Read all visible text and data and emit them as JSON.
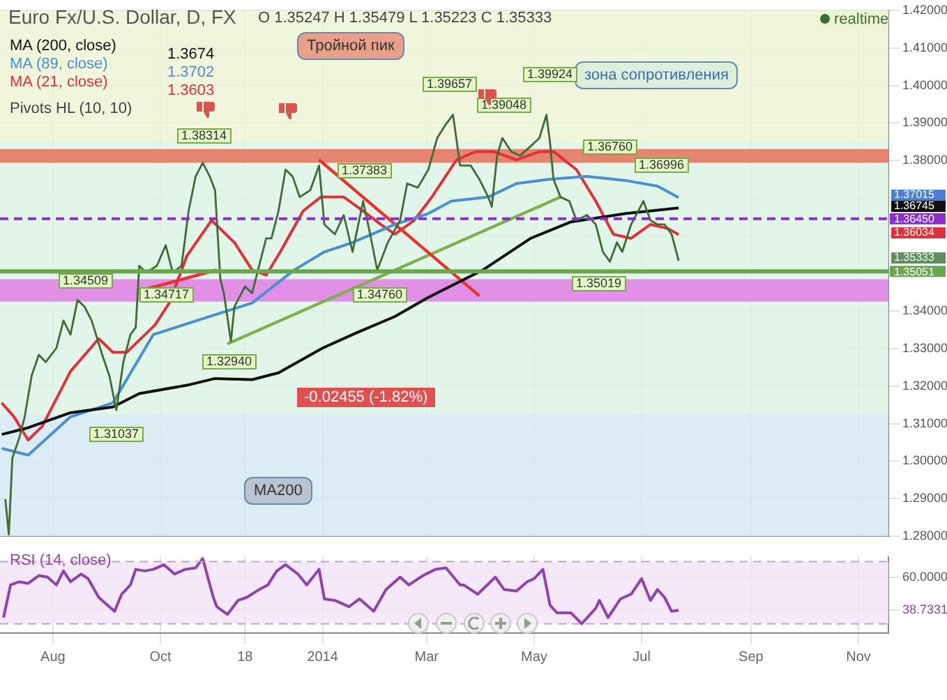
{
  "chart_data": [
    {
      "type": "line",
      "title": "Euro Fx/U.S. Dollar, D, FX",
      "x": [
        "2013-07-05",
        "2013-07-07",
        "2013-07-09",
        "2013-07-13",
        "2013-07-16",
        "2013-07-20",
        "2013-07-24",
        "2013-07-28",
        "2013-08-03",
        "2013-08-07",
        "2013-08-11",
        "2013-08-15",
        "2013-08-19",
        "2013-08-23",
        "2013-08-29",
        "2013-09-02",
        "2013-09-06",
        "2013-09-10",
        "2013-09-14",
        "2013-09-17",
        "2013-09-19",
        "2013-09-23",
        "2013-09-29",
        "2013-10-04",
        "2013-10-08",
        "2013-10-13",
        "2013-10-17",
        "2013-10-21",
        "2013-10-25",
        "2013-10-29",
        "2013-11-01",
        "2013-11-04",
        "2013-11-06",
        "2013-11-10",
        "2013-11-12",
        "2013-11-18",
        "2013-11-22",
        "2013-11-26",
        "2013-11-30",
        "2013-12-03",
        "2013-12-07",
        "2013-12-11",
        "2013-12-15",
        "2013-12-19",
        "2013-12-25",
        "2013-12-30",
        "2014-01-02",
        "2014-01-08",
        "2014-01-13",
        "2014-01-18",
        "2014-01-24",
        "2014-01-28",
        "2014-02-01",
        "2014-02-07",
        "2014-02-14",
        "2014-02-18",
        "2014-02-24",
        "2014-03-02",
        "2014-03-07",
        "2014-03-12",
        "2014-03-16",
        "2014-03-20",
        "2014-03-26",
        "2014-03-31",
        "2014-04-05",
        "2014-04-07",
        "2014-04-10",
        "2014-04-13",
        "2014-04-18",
        "2014-04-23",
        "2014-04-29",
        "2014-05-04",
        "2014-05-08",
        "2014-05-10",
        "2014-05-12",
        "2014-05-16",
        "2014-05-21",
        "2014-05-25",
        "2014-05-31",
        "2014-06-05",
        "2014-06-09",
        "2014-06-13",
        "2014-06-17",
        "2014-06-20",
        "2014-06-25",
        "2014-07-02",
        "2014-07-06",
        "2014-07-10",
        "2014-07-14",
        "2014-07-18",
        "2014-07-22"
      ],
      "series": [
        {
          "color": "#3d6b35",
          "values": [
            1.2899,
            1.2805,
            1.3008,
            1.3063,
            1.3118,
            1.3228,
            1.3283,
            1.3264,
            1.3301,
            1.3374,
            1.3337,
            1.3429,
            1.3411,
            1.3374,
            1.3283,
            1.3228,
            1.3136,
            1.3264,
            1.3337,
            1.3356,
            1.352,
            1.3502,
            1.352,
            1.3575,
            1.3502,
            1.352,
            1.3666,
            1.3758,
            1.3794,
            1.3758,
            1.3721,
            1.3484,
            1.3447,
            1.3319,
            1.3411,
            1.3465,
            1.3447,
            1.352,
            1.3593,
            1.3593,
            1.3666,
            1.3776,
            1.3758,
            1.3703,
            1.3721,
            1.3787,
            1.363,
            1.3604,
            1.3655,
            1.3557,
            1.3692,
            1.3604,
            1.3509,
            1.3582,
            1.3641,
            1.3739,
            1.3728,
            1.3776,
            1.386,
            1.3897,
            1.3922,
            1.3787,
            1.3787,
            1.375,
            1.3703,
            1.3677,
            1.3813,
            1.386,
            1.3824,
            1.3813,
            1.3838,
            1.386,
            1.3922,
            1.3849,
            1.375,
            1.3703,
            1.3692,
            1.3641,
            1.3655,
            1.363,
            1.3557,
            1.3531,
            1.3582,
            1.3557,
            1.363,
            1.3692,
            1.3641,
            1.363,
            1.363,
            1.3604,
            1.3533
          ]
        },
        {
          "name": "MA (200, close)",
          "color": "#111111",
          "x": [
            "2013-07-03",
            "2013-07-18",
            "2013-08-11",
            "2013-09-04",
            "2013-09-19",
            "2013-10-16",
            "2013-11-01",
            "2013-11-22",
            "2013-12-07",
            "2014-01-01",
            "2014-01-18",
            "2014-02-11",
            "2014-03-02",
            "2014-04-02",
            "2014-04-29",
            "2014-05-22",
            "2014-06-22",
            "2014-07-22"
          ],
          "values": [
            1.3071,
            1.3089,
            1.3129,
            1.3144,
            1.318,
            1.3202,
            1.322,
            1.3217,
            1.3235,
            1.3301,
            1.3337,
            1.3385,
            1.3436,
            1.3509,
            1.3593,
            1.3637,
            1.3659,
            1.3674
          ]
        },
        {
          "name": "MA (89, close)",
          "color": "#4a90d0",
          "x": [
            "2013-07-03",
            "2013-07-18",
            "2013-08-11",
            "2013-09-04",
            "2013-09-27",
            "2013-10-29",
            "2013-11-22",
            "2013-12-16",
            "2014-01-02",
            "2014-01-18",
            "2014-02-11",
            "2014-03-02",
            "2014-03-15",
            "2014-04-05",
            "2014-04-21",
            "2014-05-09",
            "2014-05-31",
            "2014-06-22",
            "2014-07-10",
            "2014-07-22"
          ],
          "values": [
            1.3034,
            1.3016,
            1.3118,
            1.3155,
            1.3337,
            1.3385,
            1.3421,
            1.3509,
            1.3557,
            1.3582,
            1.363,
            1.3659,
            1.3692,
            1.3703,
            1.3739,
            1.375,
            1.3758,
            1.3747,
            1.3732,
            1.3702
          ]
        },
        {
          "name": "MA (21, close)",
          "color": "#e0303a",
          "x": [
            "2013-07-03",
            "2013-07-10",
            "2013-07-18",
            "2013-07-26",
            "2013-08-11",
            "2013-08-27",
            "2013-09-04",
            "2013-09-12",
            "2013-09-28",
            "2013-10-06",
            "2013-10-16",
            "2013-10-30",
            "2013-11-12",
            "2013-11-22",
            "2013-11-30",
            "2013-12-08",
            "2013-12-21",
            "2013-12-31",
            "2014-01-13",
            "2014-01-24",
            "2014-02-03",
            "2014-02-11",
            "2014-02-22",
            "2014-03-04",
            "2014-03-18",
            "2014-03-29",
            "2014-04-08",
            "2014-04-21",
            "2014-05-04",
            "2014-05-12",
            "2014-05-25",
            "2014-06-05",
            "2014-06-15",
            "2014-06-25",
            "2014-07-06",
            "2014-07-16",
            "2014-07-22"
          ],
          "values": [
            1.3155,
            1.3118,
            1.3056,
            1.3093,
            1.3239,
            1.3326,
            1.329,
            1.329,
            1.3363,
            1.3421,
            1.3546,
            1.3641,
            1.3582,
            1.3509,
            1.3495,
            1.3557,
            1.3666,
            1.3703,
            1.3703,
            1.3666,
            1.363,
            1.3604,
            1.3641,
            1.3703,
            1.3802,
            1.3824,
            1.3824,
            1.3802,
            1.3824,
            1.3824,
            1.3776,
            1.3692,
            1.3604,
            1.3593,
            1.363,
            1.3619,
            1.3603
          ]
        },
        {
          "color": "#e8322b",
          "x": [
            "2013-12-30",
            "2014-03-31"
          ],
          "values": [
            1.3802,
            1.344
          ]
        },
        {
          "color": "#7fb04f",
          "x": [
            "2013-11-08",
            "2014-05-16"
          ],
          "values": [
            1.3312,
            1.3703
          ]
        },
        {
          "color": "#f03030",
          "x": [
            "2013-09-23",
            "2013-11-02"
          ],
          "values": [
            1.3458,
            1.3509
          ]
        }
      ],
      "xlim": [
        "2013-07-02",
        "2014-11-18"
      ],
      "xticks": [
        {
          "value": "2013-08-01",
          "label": null
        },
        {
          "value": "2013-10-01",
          "label": null
        },
        {
          "value": "2013-11-18",
          "label": null
        },
        {
          "value": "2014-01-01",
          "label": null
        },
        {
          "value": "2014-03-01",
          "label": null
        },
        {
          "value": "2014-05-01",
          "label": null
        },
        {
          "value": "2014-07-01",
          "label": null
        },
        {
          "value": "2014-09-01",
          "label": null
        },
        {
          "value": "2014-11-01",
          "label": null
        }
      ],
      "ylim": [
        1.28,
        1.42
      ],
      "yticks": [
        {
          "value": 1.28,
          "label": "1.28000"
        },
        {
          "value": 1.29,
          "label": "1.29000"
        },
        {
          "value": 1.3,
          "label": "1.30000"
        },
        {
          "value": 1.31,
          "label": "1.31000"
        },
        {
          "value": 1.32,
          "label": "1.32000"
        },
        {
          "value": 1.33,
          "label": "1.33000"
        },
        {
          "value": 1.34,
          "label": "1.34000"
        },
        {
          "value": 1.35,
          "label": null
        },
        {
          "value": 1.36,
          "label": null
        },
        {
          "value": 1.37,
          "label": null
        },
        {
          "value": 1.38,
          "label": "1.38000"
        },
        {
          "value": 1.39,
          "label": "1.39000"
        },
        {
          "value": 1.4,
          "label": "1.40000"
        },
        {
          "value": 1.41,
          "label": "1.41000"
        },
        {
          "value": 1.42,
          "label": "1.42000"
        }
      ],
      "grid": true,
      "legend": "top left",
      "tick_labels": "y",
      "bands": [
        {
          "axis": "y",
          "from": 1.385,
          "to": 1.42,
          "color": "#edf5d5"
        },
        {
          "axis": "y",
          "from": 1.3125,
          "to": 1.385,
          "color": "#dcf3e4"
        },
        {
          "axis": "y",
          "from": 1.28,
          "to": 1.3125,
          "color": "#d5e9f2"
        },
        {
          "axis": "y",
          "from": 1.3794,
          "to": 1.3831,
          "color": "#e8705a"
        },
        {
          "axis": "y",
          "from": 1.3425,
          "to": 1.3484,
          "color": "#e27ce6"
        }
      ],
      "ref_lines": [
        {
          "axis": "y",
          "value": 1.3645,
          "label": "1.36450",
          "color": "#8b2fc9",
          "line_style": "dashed"
        },
        {
          "axis": "y",
          "value": 1.35051,
          "label": "1.35051",
          "color": "#6aa84f"
        }
      ],
      "annotations": [
        "O 1.35247 H 1.35479 L 1.35223 C 1.35333",
        "1.3674",
        "1.3702",
        "1.3603",
        "Pivots HL (10, 10)",
        "Тройной пик",
        "зона сопротивления",
        "MA200",
        "-0.02455 (-1.82%)",
        "realtime",
        "1.38314",
        "1.34509",
        "1.34717",
        "1.32940",
        "1.31037",
        "1.37383",
        "1.34760",
        "1.39657",
        "1.39048",
        "1.39924",
        "1.36760",
        "1.35019",
        "1.36996",
        "1.37015",
        "1.36745",
        "1.36034",
        "1.35333"
      ]
    },
    {
      "type": "line",
      "x": [
        "2013-07-04",
        "2013-07-08",
        "2013-07-13",
        "2013-07-18",
        "2013-07-24",
        "2013-07-29",
        "2013-08-03",
        "2013-08-07",
        "2013-08-11",
        "2013-08-17",
        "2013-08-21",
        "2013-08-27",
        "2013-09-01",
        "2013-09-05",
        "2013-09-09",
        "2013-09-14",
        "2013-09-17",
        "2013-09-22",
        "2013-09-27",
        "2013-10-03",
        "2013-10-09",
        "2013-10-15",
        "2013-10-21",
        "2013-10-25",
        "2013-10-31",
        "2013-11-02",
        "2013-11-08",
        "2013-11-14",
        "2013-11-19",
        "2013-11-26",
        "2013-12-01",
        "2013-12-06",
        "2013-12-11",
        "2013-12-18",
        "2013-12-23",
        "2013-12-30",
        "2014-01-02",
        "2014-01-08",
        "2014-01-16",
        "2014-01-22",
        "2014-01-30",
        "2014-02-06",
        "2014-02-14",
        "2014-02-19",
        "2014-02-27",
        "2014-03-06",
        "2014-03-12",
        "2014-03-20",
        "2014-03-22",
        "2014-03-30",
        "2014-04-09",
        "2014-04-14",
        "2014-04-21",
        "2014-04-27",
        "2014-05-01",
        "2014-05-06",
        "2014-05-10",
        "2014-05-14",
        "2014-05-22",
        "2014-05-28",
        "2014-06-05",
        "2014-06-07",
        "2014-06-12",
        "2014-06-19",
        "2014-06-25",
        "2014-07-01",
        "2014-07-06",
        "2014-07-10",
        "2014-07-14",
        "2014-07-18",
        "2014-07-22"
      ],
      "series": [
        {
          "name": "RSI (14, close)",
          "color": "#8e44ad",
          "values": [
            34,
            55,
            57,
            56,
            61,
            60,
            55,
            64,
            57,
            62,
            59,
            47,
            42,
            38,
            49,
            55,
            65,
            64,
            65,
            68,
            62,
            65,
            66,
            72,
            47,
            41,
            36,
            45,
            47,
            52,
            55,
            64,
            68,
            62,
            55,
            65,
            46,
            45,
            41,
            46,
            38,
            52,
            60,
            55,
            61,
            65,
            66,
            55,
            55,
            49,
            60,
            52,
            51,
            57,
            59,
            65,
            42,
            37,
            37,
            30,
            40,
            45,
            34,
            46,
            49,
            59,
            45,
            52,
            47,
            38,
            38.7331
          ]
        }
      ],
      "xlim": [
        "2013-07-02",
        "2014-11-18"
      ],
      "xticks": [
        {
          "value": "2013-08-01",
          "label": "Aug"
        },
        {
          "value": "2013-10-01",
          "label": "Oct"
        },
        {
          "value": "2013-11-18",
          "label": "18"
        },
        {
          "value": "2014-01-01",
          "label": "2014"
        },
        {
          "value": "2014-03-01",
          "label": "Mar"
        },
        {
          "value": "2014-05-01",
          "label": "May"
        },
        {
          "value": "2014-07-01",
          "label": "Jul"
        },
        {
          "value": "2014-09-01",
          "label": "Sep"
        },
        {
          "value": "2014-11-01",
          "label": "Nov"
        }
      ],
      "ylim": [
        24,
        73
      ],
      "yticks": [
        {
          "value": 60,
          "label": "60.0000"
        },
        {
          "value": 38.7331,
          "label": "38.7331"
        }
      ],
      "grid": true,
      "legend": "top left",
      "bands": [
        {
          "axis": "y",
          "from": 30,
          "to": 70,
          "color": "#f3e4f8"
        }
      ],
      "ref_lines": [
        {
          "axis": "y",
          "value": 70,
          "color": "#bba5c6",
          "line_style": "dashed"
        },
        {
          "axis": "y",
          "value": 30,
          "color": "#bba5c6",
          "line_style": "dashed"
        }
      ]
    }
  ]
}
